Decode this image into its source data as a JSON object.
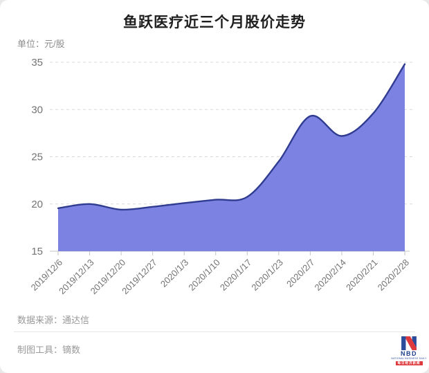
{
  "page": {
    "title": "鱼跃医疗近三个月股价走势",
    "unit_label": "单位：元/股"
  },
  "chart_data": {
    "type": "area",
    "title": "鱼跃医疗近三个月股价走势",
    "unit": "元/股",
    "categories": [
      "2019/12/6",
      "2019/12/13",
      "2019/12/20",
      "2019/12/27",
      "2020/1/3",
      "2020/1/10",
      "2020/1/17",
      "2020/1/23",
      "2020/2/7",
      "2020/2/14",
      "2020/2/21",
      "2020/2/28"
    ],
    "values": [
      19.55,
      20.0,
      19.4,
      19.7,
      20.1,
      20.45,
      20.75,
      24.5,
      29.3,
      27.2,
      29.6,
      34.8
    ],
    "xlabel": "",
    "ylabel": "元/股",
    "ylim": [
      15,
      35
    ],
    "yticks": [
      15,
      20,
      25,
      30,
      35
    ],
    "grid": "horizontal-dashed",
    "legend": "none",
    "colors": {
      "area_fill": "#7b82e2",
      "line": "#2f3c8f",
      "grid": "#d9d9d9",
      "axis": "#c3c3c3",
      "tick_label": "#737373"
    }
  },
  "footer": {
    "source_label": "数据来源：通达信",
    "tool_label": "制图工具：镝数"
  },
  "logo": {
    "text": "NBD",
    "subtext": "NATIONAL BUSINESS DAILY",
    "banner": "每日经济新闻",
    "blue": "#2b4b9b",
    "red": "#de3a3e",
    "navy": "#1d3e8f"
  }
}
